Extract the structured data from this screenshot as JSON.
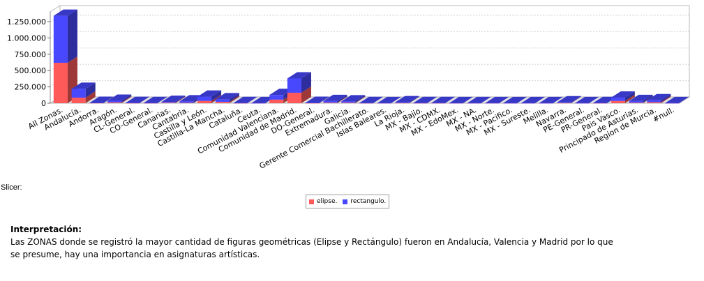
{
  "chart_data": {
    "type": "bar",
    "stacked": true,
    "three_d": true,
    "categories": [
      "All Zonas.",
      "Andalucía.",
      "Andorra.",
      "Aragón.",
      "CL-General.",
      "CO-General.",
      "Canarias.",
      "Cantabria.",
      "Castilla y León.",
      "Castilla-La Mancha.",
      "Cataluña.",
      "Ceuta.",
      "Comunidad Valenciana.",
      "Comunidad de Madrid.",
      "DO-General.",
      "Extremadura.",
      "Galicia.",
      "Gerente Comercial Bachillerato.",
      "Islas Baleares.",
      "La Rioja.",
      "MX - Bajio.",
      "MX - CDMX.",
      "MX - EdoMex.",
      "MX - NA.",
      "MX - Norte.",
      "MX - Pacifico.",
      "MX - Sureste.",
      "Melilla.",
      "Navarra.",
      "PE-General.",
      "PR-General.",
      "Pais Vasco.",
      "Principado de Asturias.",
      "Region de Murcia.",
      "#null."
    ],
    "series": [
      {
        "name": "elipse.",
        "color": "#ff5a5a",
        "values": [
          620000,
          85000,
          3000,
          12000,
          2000,
          1000,
          8000,
          6000,
          35000,
          20000,
          1000,
          500,
          55000,
          160000,
          2000,
          8000,
          8000,
          1000,
          1000,
          3000,
          1000,
          1000,
          1000,
          1000,
          1000,
          500,
          500,
          500,
          3000,
          500,
          1000,
          35000,
          8000,
          15000,
          500
        ]
      },
      {
        "name": "rectangulo.",
        "color": "#4848ff",
        "values": [
          720000,
          135000,
          2000,
          25000,
          2000,
          2000,
          12000,
          22000,
          65000,
          40000,
          2000,
          1000,
          70000,
          220000,
          3000,
          25000,
          20000,
          2000,
          1000,
          12000,
          2000,
          2000,
          1000,
          1000,
          1000,
          1000,
          1000,
          1000,
          10000,
          1000,
          2000,
          50000,
          25000,
          30000,
          1000
        ]
      }
    ],
    "y_ticks": [
      "0",
      "250.000",
      "500.000",
      "750.000",
      "1.000.000",
      "1.250.000"
    ],
    "ylim": [
      0,
      1400000
    ],
    "grid": true,
    "legend_position": "bottom"
  },
  "slicer_label": "Slicer:",
  "interpretation": {
    "title": "Interpretación:",
    "body": "Las ZONAS donde se registró la mayor cantidad de figuras geométricas (Elipse y Rectángulo) fueron en Andalucía, Valencia y Madrid por lo que se presume, hay una importancia en asignaturas artísticas."
  }
}
